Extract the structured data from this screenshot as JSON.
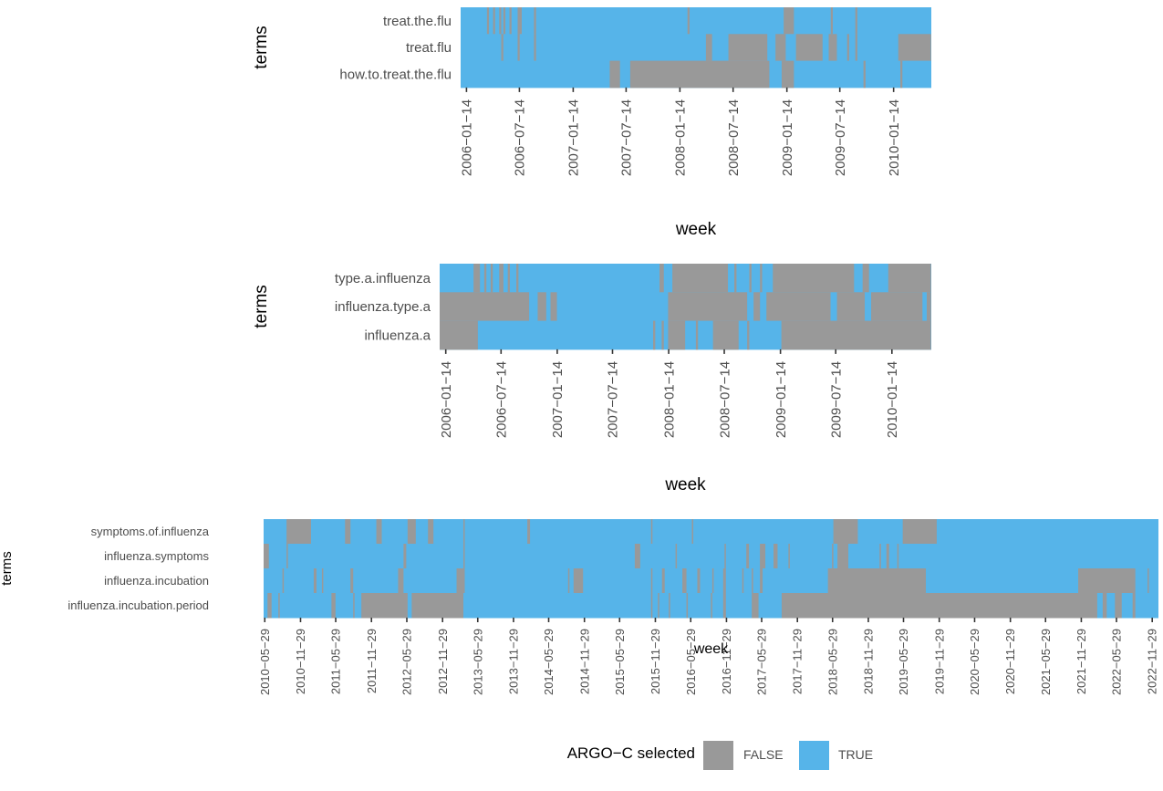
{
  "colors": {
    "false": "#999999",
    "true": "#56B4E9",
    "text": "#4d4d4d",
    "tick": "#333333"
  },
  "legend": {
    "title": "ARGO−C selected",
    "items": [
      {
        "label": "FALSE",
        "color": "#999999"
      },
      {
        "label": "TRUE",
        "color": "#56B4E9"
      }
    ]
  },
  "chart_data": [
    {
      "type": "heatmap",
      "xlabel": "week",
      "ylabel": "terms",
      "x_range": [
        "2005-12-25",
        "2010-05-23"
      ],
      "x_ticks": [
        "2006−01−14",
        "2006−07−14",
        "2007−01−14",
        "2007−07−14",
        "2008−01−14",
        "2008−07−14",
        "2009−01−14",
        "2009−07−14",
        "2010−01−14"
      ],
      "x_tick_dates": [
        "2006-01-14",
        "2006-07-14",
        "2007-01-14",
        "2007-07-14",
        "2008-01-14",
        "2008-07-14",
        "2009-01-14",
        "2009-07-14",
        "2010-01-14"
      ],
      "terms": [
        "treat.the.flu",
        "treat.flu",
        "how.to.treat.the.flu"
      ],
      "selection": [
        {
          "term": "treat.the.flu",
          "false_periods": [
            [
              "2006-03-25",
              "2006-04-01"
            ],
            [
              "2006-04-15",
              "2006-04-22"
            ],
            [
              "2006-05-06",
              "2006-05-13"
            ],
            [
              "2006-05-20",
              "2006-05-27"
            ],
            [
              "2006-06-10",
              "2006-06-17"
            ],
            [
              "2006-07-08",
              "2006-07-22"
            ],
            [
              "2006-09-02",
              "2006-09-09"
            ],
            [
              "2008-02-09",
              "2008-02-16"
            ],
            [
              "2009-01-03",
              "2009-02-07"
            ],
            [
              "2009-06-13",
              "2009-06-20"
            ],
            [
              "2009-09-05",
              "2009-09-12"
            ]
          ]
        },
        {
          "term": "treat.flu",
          "false_periods": [
            [
              "2006-05-13",
              "2006-05-20"
            ],
            [
              "2006-07-08",
              "2006-07-15"
            ],
            [
              "2006-09-02",
              "2006-09-09"
            ],
            [
              "2008-04-12",
              "2008-05-03"
            ],
            [
              "2008-06-28",
              "2008-11-08"
            ],
            [
              "2008-12-06",
              "2009-01-10"
            ],
            [
              "2009-02-14",
              "2009-05-16"
            ],
            [
              "2009-06-06",
              "2009-07-04"
            ],
            [
              "2009-08-08",
              "2009-08-15"
            ],
            [
              "2009-09-05",
              "2009-09-12"
            ],
            [
              "2010-01-30",
              "2010-05-22"
            ]
          ]
        },
        {
          "term": "how.to.treat.the.flu",
          "false_periods": [
            [
              "2007-05-19",
              "2007-06-23"
            ],
            [
              "2007-07-28",
              "2008-11-15"
            ],
            [
              "2008-12-27",
              "2009-02-07"
            ],
            [
              "2009-10-03",
              "2009-10-10"
            ],
            [
              "2010-02-06",
              "2010-02-13"
            ]
          ]
        }
      ]
    },
    {
      "type": "heatmap",
      "xlabel": "week",
      "ylabel": "terms",
      "x_range": [
        "2005-12-25",
        "2010-05-23"
      ],
      "x_ticks": [
        "2006−01−14",
        "2006−07−14",
        "2007−01−14",
        "2007−07−14",
        "2008−01−14",
        "2008−07−14",
        "2009−01−14",
        "2009−07−14",
        "2010−01−14"
      ],
      "x_tick_dates": [
        "2006-01-14",
        "2006-07-14",
        "2007-01-14",
        "2007-07-14",
        "2008-01-14",
        "2008-07-14",
        "2009-01-14",
        "2009-07-14",
        "2010-01-14"
      ],
      "terms": [
        "type.a.influenza",
        "influenza.type.a",
        "influenza.a"
      ],
      "selection": [
        {
          "term": "type.a.influenza",
          "false_periods": [
            [
              "2006-04-15",
              "2006-05-06"
            ],
            [
              "2006-05-20",
              "2006-05-27"
            ],
            [
              "2006-06-10",
              "2006-06-17"
            ],
            [
              "2006-07-08",
              "2006-07-22"
            ],
            [
              "2006-08-05",
              "2006-08-12"
            ],
            [
              "2006-09-02",
              "2006-09-09"
            ],
            [
              "2007-12-15",
              "2007-12-29"
            ],
            [
              "2008-01-26",
              "2008-07-26"
            ],
            [
              "2008-08-16",
              "2008-08-23"
            ],
            [
              "2008-10-04",
              "2008-10-11"
            ],
            [
              "2008-11-08",
              "2008-11-15"
            ],
            [
              "2008-12-20",
              "2009-09-12"
            ],
            [
              "2009-10-10",
              "2009-10-31"
            ],
            [
              "2010-01-02",
              "2010-05-22"
            ]
          ]
        },
        {
          "term": "influenza.type.a",
          "false_periods": [
            [
              "2005-12-25",
              "2006-10-14"
            ],
            [
              "2006-11-11",
              "2006-12-09"
            ],
            [
              "2006-12-23",
              "2007-01-13"
            ],
            [
              "2008-01-12",
              "2008-09-27"
            ],
            [
              "2008-10-18",
              "2008-11-08"
            ],
            [
              "2008-11-29",
              "2009-06-27"
            ],
            [
              "2009-07-18",
              "2009-10-17"
            ],
            [
              "2009-11-07",
              "2010-04-24"
            ],
            [
              "2010-05-08",
              "2010-05-22"
            ]
          ]
        },
        {
          "term": "influenza.a",
          "false_periods": [
            [
              "2005-12-25",
              "2006-04-29"
            ],
            [
              "2007-11-24",
              "2007-12-01"
            ],
            [
              "2007-12-22",
              "2007-12-29"
            ],
            [
              "2008-01-12",
              "2008-03-08"
            ],
            [
              "2008-04-12",
              "2008-04-19"
            ],
            [
              "2008-06-07",
              "2008-08-30"
            ],
            [
              "2008-09-27",
              "2008-10-04"
            ],
            [
              "2009-01-17",
              "2010-05-22"
            ]
          ]
        }
      ]
    },
    {
      "type": "heatmap",
      "xlabel": "week",
      "ylabel": "terms",
      "x_range": [
        "2010-05-23",
        "2022-12-31"
      ],
      "x_ticks": [
        "2010−05−29",
        "2010−11−29",
        "2011−05−29",
        "2011−11−29",
        "2012−05−29",
        "2012−11−29",
        "2013−05−29",
        "2013−11−29",
        "2014−05−29",
        "2014−11−29",
        "2015−05−29",
        "2015−11−29",
        "2016−05−29",
        "2016−11−29",
        "2017−05−29",
        "2017−11−29",
        "2018−05−29",
        "2018−11−29",
        "2019−05−29",
        "2019−11−29",
        "2020−05−29",
        "2020−11−29",
        "2021−05−29",
        "2021−11−29",
        "2022−05−29",
        "2022−11−29"
      ],
      "x_tick_dates": [
        "2010-05-29",
        "2010-11-29",
        "2011-05-29",
        "2011-11-29",
        "2012-05-29",
        "2012-11-29",
        "2013-05-29",
        "2013-11-29",
        "2014-05-29",
        "2014-11-29",
        "2015-05-29",
        "2015-11-29",
        "2016-05-29",
        "2016-11-29",
        "2017-05-29",
        "2017-11-29",
        "2018-05-29",
        "2018-11-29",
        "2019-05-29",
        "2019-11-29",
        "2020-05-29",
        "2020-11-29",
        "2021-05-29",
        "2021-11-29",
        "2022-05-29",
        "2022-11-29"
      ],
      "terms": [
        "symptoms.of.influenza",
        "influenza.symptoms",
        "influenza.incubation",
        "influenza.incubation.period"
      ],
      "selection": [
        {
          "term": "symptoms.of.influenza",
          "false_periods": [
            [
              "2010-09-18",
              "2011-01-22"
            ],
            [
              "2011-07-16",
              "2011-08-13"
            ],
            [
              "2011-12-24",
              "2012-01-21"
            ],
            [
              "2012-06-02",
              "2012-07-14"
            ],
            [
              "2012-09-15",
              "2012-10-13"
            ],
            [
              "2013-03-16",
              "2013-03-23"
            ],
            [
              "2014-02-08",
              "2014-02-22"
            ],
            [
              "2015-11-07",
              "2015-11-14"
            ],
            [
              "2016-06-04",
              "2016-06-11"
            ],
            [
              "2018-06-02",
              "2018-10-06"
            ],
            [
              "2019-05-25",
              "2019-11-16"
            ]
          ]
        },
        {
          "term": "influenza.symptoms",
          "false_periods": [
            [
              "2010-05-23",
              "2010-06-19"
            ],
            [
              "2010-09-18",
              "2010-09-25"
            ],
            [
              "2012-05-12",
              "2012-05-26"
            ],
            [
              "2013-03-16",
              "2013-03-23"
            ],
            [
              "2015-08-15",
              "2015-09-12"
            ],
            [
              "2016-03-12",
              "2016-03-19"
            ],
            [
              "2016-11-19",
              "2016-11-26"
            ],
            [
              "2017-03-11",
              "2017-03-25"
            ],
            [
              "2017-05-20",
              "2017-06-17"
            ],
            [
              "2017-07-29",
              "2017-08-19"
            ],
            [
              "2017-10-14",
              "2017-10-21"
            ],
            [
              "2018-05-26",
              "2018-06-02"
            ],
            [
              "2018-06-23",
              "2018-08-18"
            ],
            [
              "2019-01-26",
              "2019-02-02"
            ],
            [
              "2019-03-02",
              "2019-03-16"
            ],
            [
              "2019-04-27",
              "2019-05-04"
            ]
          ]
        },
        {
          "term": "influenza.incubation",
          "false_periods": [
            [
              "2010-08-28",
              "2010-09-04"
            ],
            [
              "2011-02-05",
              "2011-02-19"
            ],
            [
              "2011-03-19",
              "2011-03-26"
            ],
            [
              "2011-08-13",
              "2011-08-27"
            ],
            [
              "2012-04-14",
              "2012-05-12"
            ],
            [
              "2013-02-09",
              "2013-03-23"
            ],
            [
              "2014-09-06",
              "2014-09-13"
            ],
            [
              "2014-10-04",
              "2014-11-22"
            ],
            [
              "2015-11-07",
              "2015-11-14"
            ],
            [
              "2016-01-02",
              "2016-01-16"
            ],
            [
              "2016-04-16",
              "2016-05-07"
            ],
            [
              "2016-07-02",
              "2016-07-16"
            ],
            [
              "2016-09-17",
              "2016-09-24"
            ],
            [
              "2016-11-12",
              "2016-11-26"
            ],
            [
              "2017-02-18",
              "2017-02-25"
            ],
            [
              "2017-04-08",
              "2017-04-15"
            ],
            [
              "2017-05-20",
              "2017-06-03"
            ],
            [
              "2018-05-05",
              "2019-09-21"
            ],
            [
              "2021-11-13",
              "2022-09-03"
            ],
            [
              "2022-11-05",
              "2022-11-12"
            ]
          ]
        },
        {
          "term": "influenza.incubation.period",
          "false_periods": [
            [
              "2010-06-12",
              "2010-07-03"
            ],
            [
              "2010-08-07",
              "2010-08-14"
            ],
            [
              "2011-05-07",
              "2011-05-28"
            ],
            [
              "2011-08-27",
              "2011-09-03"
            ],
            [
              "2011-10-08",
              "2012-06-02"
            ],
            [
              "2012-06-23",
              "2013-03-16"
            ],
            [
              "2015-11-07",
              "2015-11-14"
            ],
            [
              "2015-12-12",
              "2015-12-19"
            ],
            [
              "2016-02-06",
              "2016-02-13"
            ],
            [
              "2016-05-07",
              "2016-05-14"
            ],
            [
              "2016-09-10",
              "2016-09-17"
            ],
            [
              "2016-11-12",
              "2016-11-26"
            ],
            [
              "2017-04-08",
              "2017-05-13"
            ],
            [
              "2017-09-09",
              "2022-02-19"
            ],
            [
              "2022-03-19",
              "2022-04-09"
            ],
            [
              "2022-05-21",
              "2022-06-25"
            ],
            [
              "2022-08-20",
              "2022-09-03"
            ]
          ]
        }
      ]
    }
  ]
}
